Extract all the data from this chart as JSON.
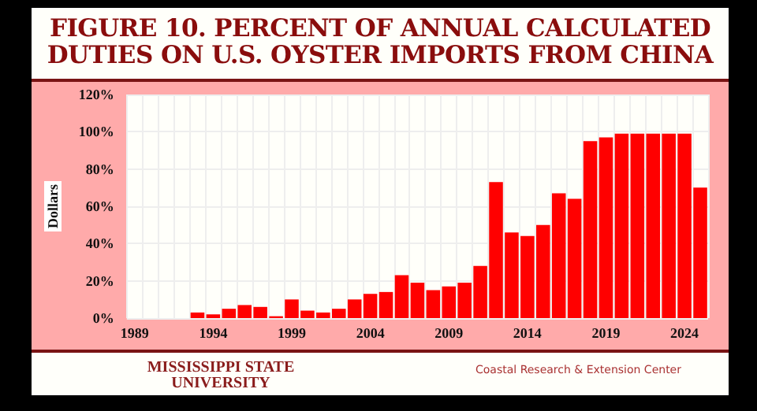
{
  "chart_data": {
    "type": "bar",
    "title": "FIGURE 10. PERCENT OF ANNUAL CALCULATED DUTIES ON U.S. OYSTER IMPORTS FROM CHINA",
    "ylabel": "Dollars",
    "categories": [
      "1989",
      null,
      null,
      null,
      null,
      "1994",
      null,
      null,
      null,
      null,
      "1999",
      null,
      null,
      null,
      null,
      "2004",
      null,
      null,
      null,
      null,
      "2009",
      null,
      null,
      null,
      null,
      "2014",
      null,
      null,
      null,
      null,
      "2019",
      null,
      null,
      null,
      null,
      "2024",
      null
    ],
    "values": [
      0,
      0,
      0,
      0,
      3,
      2,
      5,
      7,
      6,
      1,
      10,
      4,
      3,
      5,
      10,
      13,
      14,
      23,
      19,
      15,
      17,
      19,
      28,
      73,
      46,
      44,
      50,
      67,
      64,
      95,
      97,
      99,
      99,
      99,
      99,
      99,
      70
    ],
    "color": "#ff0000",
    "ylim": [
      0,
      120
    ],
    "yticks": [
      {
        "value": 0,
        "label": "0%"
      },
      {
        "value": 20,
        "label": "20%"
      },
      {
        "value": 40,
        "label": "40%"
      },
      {
        "value": 60,
        "label": "60%"
      },
      {
        "value": 80,
        "label": "80%"
      },
      {
        "value": 100,
        "label": "100%"
      },
      {
        "value": 120,
        "label": "120%"
      }
    ],
    "grid": true,
    "annotations": [
      "MISSISSIPPI STATE UNIVERSITY",
      "Coastal Research & Extension Center"
    ]
  }
}
